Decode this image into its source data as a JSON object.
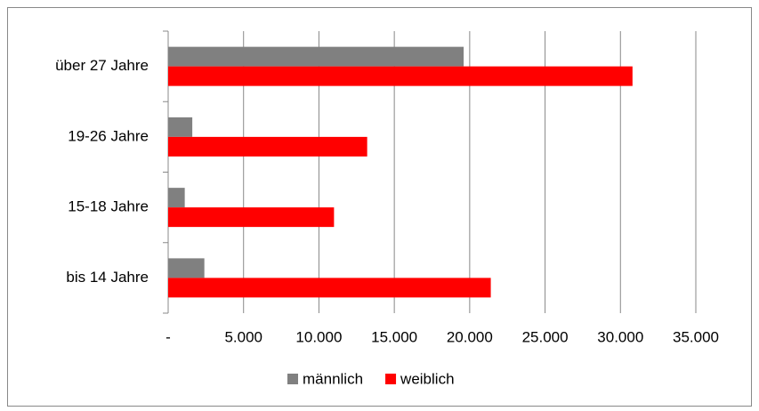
{
  "chart_data": {
    "type": "bar",
    "orientation": "horizontal",
    "categories": [
      "über 27 Jahre",
      "19-26 Jahre",
      "15-18 Jahre",
      "bis 14 Jahre"
    ],
    "series": [
      {
        "name": "männlich",
        "color": "#808080",
        "values": [
          19600,
          1600,
          1100,
          2400
        ]
      },
      {
        "name": "weiblich",
        "color": "#ff0000",
        "values": [
          30800,
          13200,
          11000,
          21400
        ]
      }
    ],
    "xlim": [
      0,
      35000
    ],
    "xticks": [
      {
        "value": 0,
        "label": "-"
      },
      {
        "value": 5000,
        "label": "5.000"
      },
      {
        "value": 10000,
        "label": "10.000"
      },
      {
        "value": 15000,
        "label": "15.000"
      },
      {
        "value": 20000,
        "label": "20.000"
      },
      {
        "value": 25000,
        "label": "25.000"
      },
      {
        "value": 30000,
        "label": "30.000"
      },
      {
        "value": 35000,
        "label": "35.000"
      }
    ],
    "grid": true,
    "legend": "bottom"
  }
}
